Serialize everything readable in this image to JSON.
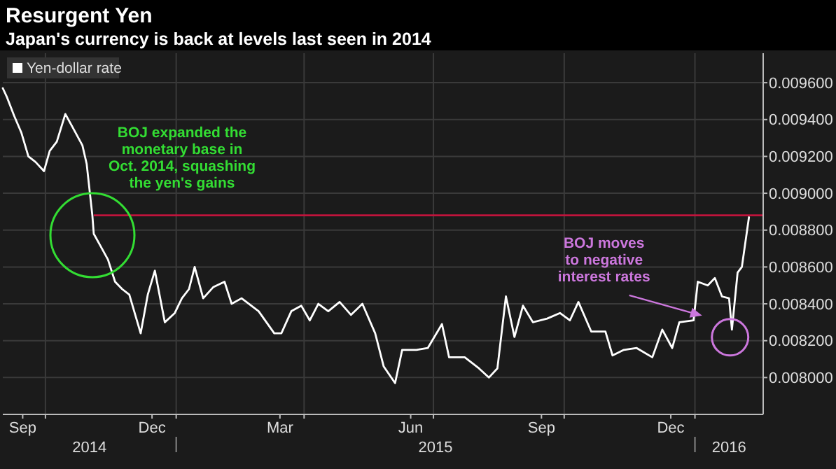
{
  "chart_data": {
    "type": "line",
    "title": "Resurgent Yen",
    "subtitle": "Japan's currency is back at levels last seen in 2014",
    "legend": "top left",
    "grid": true,
    "xlim": [
      "2014-09-01",
      "2016-02-18"
    ],
    "xticks": [
      {
        "value": "2014-09-15",
        "label": "Sep"
      },
      {
        "value": "2014-12-15",
        "label": "Dec"
      },
      {
        "value": "2015-03-15",
        "label": "Mar"
      },
      {
        "value": "2015-06-15",
        "label": "Jun"
      },
      {
        "value": "2015-09-15",
        "label": "Sep"
      },
      {
        "value": "2015-12-15",
        "label": "Dec"
      },
      {
        "value": "2014-10-01",
        "label": null
      },
      {
        "value": "2015-01-01",
        "label": null
      },
      {
        "value": "2015-04-01",
        "label": null
      },
      {
        "value": "2015-07-01",
        "label": null
      },
      {
        "value": "2015-10-01",
        "label": null
      },
      {
        "value": "2016-01-01",
        "label": null
      }
    ],
    "ylim": [
      0.0078,
      0.00976
    ],
    "yticks": [
      {
        "value": 0.008,
        "label": "0.008000"
      },
      {
        "value": 0.0082,
        "label": "0.008200"
      },
      {
        "value": 0.0084,
        "label": "0.008400"
      },
      {
        "value": 0.0086,
        "label": "0.008600"
      },
      {
        "value": 0.0088,
        "label": "0.008800"
      },
      {
        "value": 0.009,
        "label": "0.009000"
      },
      {
        "value": 0.0092,
        "label": "0.009200"
      },
      {
        "value": 0.0094,
        "label": "0.009400"
      },
      {
        "value": 0.0096,
        "label": "0.009600"
      }
    ],
    "ref_lines": [
      {
        "axis": "y",
        "value": 0.00888,
        "color": "#c0143c"
      }
    ],
    "annotations": [
      "BOJ expanded the\nmonetary base in\nOct. 2014, squashing\nthe yen's gains",
      {
        "text": "BOJ moves\nto negative\ninterest rates",
        "x": "2016-01-06",
        "y": 0.00834
      },
      "2014",
      "2015",
      "2016"
    ],
    "series": [
      {
        "name": "Yen-dollar rate",
        "color": "#ffffff",
        "x": [
          "2014-09-01",
          "2014-09-04",
          "2014-09-09",
          "2014-09-14",
          "2014-09-19",
          "2014-09-24",
          "2014-09-30",
          "2014-10-04",
          "2014-10-09",
          "2014-10-15",
          "2014-10-20",
          "2014-10-27",
          "2014-10-30",
          "2014-11-03",
          "2014-11-04",
          "2014-11-09",
          "2014-11-14",
          "2014-11-19",
          "2014-11-24",
          "2014-11-29",
          "2014-12-07",
          "2014-12-12",
          "2014-12-17",
          "2014-12-24",
          "2014-12-31",
          "2015-01-05",
          "2015-01-10",
          "2015-01-14",
          "2015-01-20",
          "2015-01-27",
          "2015-02-04",
          "2015-02-09",
          "2015-02-16",
          "2015-02-28",
          "2015-03-11",
          "2015-03-16",
          "2015-03-23",
          "2015-03-30",
          "2015-04-05",
          "2015-04-11",
          "2015-04-18",
          "2015-04-26",
          "2015-05-04",
          "2015-05-12",
          "2015-05-21",
          "2015-05-27",
          "2015-06-04",
          "2015-06-09",
          "2015-06-19",
          "2015-06-27",
          "2015-07-07",
          "2015-07-12",
          "2015-07-23",
          "2015-08-02",
          "2015-08-09",
          "2015-08-15",
          "2015-08-21",
          "2015-08-27",
          "2015-09-02",
          "2015-09-09",
          "2015-09-19",
          "2015-09-28",
          "2015-10-05",
          "2015-10-11",
          "2015-10-20",
          "2015-10-30",
          "2015-11-04",
          "2015-11-12",
          "2015-11-21",
          "2015-12-02",
          "2015-12-09",
          "2015-12-16",
          "2015-12-21",
          "2015-12-31",
          "2016-01-03",
          "2016-01-10",
          "2016-01-15",
          "2016-01-20",
          "2016-01-25",
          "2016-01-27",
          "2016-01-31",
          "2016-02-03",
          "2016-02-08"
        ],
        "values": [
          0.00957,
          0.00952,
          0.00942,
          0.00933,
          0.0092,
          0.00917,
          0.00912,
          0.00923,
          0.00928,
          0.00943,
          0.00936,
          0.00926,
          0.00916,
          0.00888,
          0.00878,
          0.00871,
          0.00864,
          0.00852,
          0.00848,
          0.00845,
          0.00824,
          0.00845,
          0.00858,
          0.0083,
          0.00835,
          0.00843,
          0.00848,
          0.0086,
          0.00843,
          0.00849,
          0.00852,
          0.0084,
          0.00843,
          0.00836,
          0.00824,
          0.00824,
          0.00836,
          0.00839,
          0.00831,
          0.0084,
          0.00836,
          0.00841,
          0.00834,
          0.0084,
          0.00824,
          0.00806,
          0.00797,
          0.00815,
          0.00815,
          0.00816,
          0.00829,
          0.00811,
          0.00811,
          0.00805,
          0.008,
          0.00805,
          0.00844,
          0.00822,
          0.00839,
          0.0083,
          0.00832,
          0.00835,
          0.00831,
          0.00841,
          0.00825,
          0.00825,
          0.00812,
          0.00815,
          0.00816,
          0.00811,
          0.00826,
          0.00816,
          0.0083,
          0.00831,
          0.00852,
          0.0085,
          0.00854,
          0.00844,
          0.00843,
          0.00826,
          0.00857,
          0.0086,
          0.00887
        ]
      }
    ]
  }
}
